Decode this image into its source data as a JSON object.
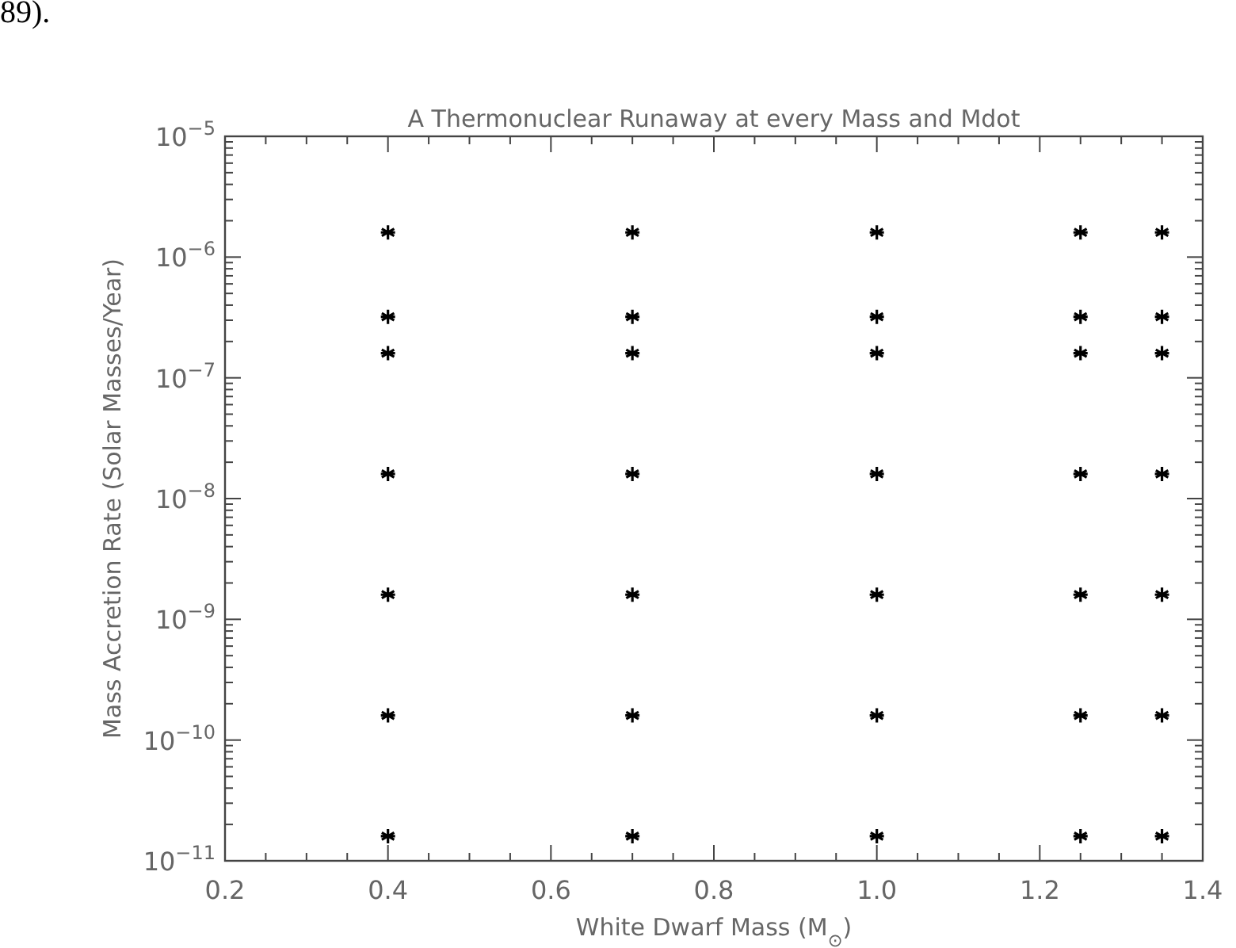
{
  "chart_data": {
    "type": "scatter",
    "title": "A Thermonuclear Runaway at every Mass and Mdot",
    "xlabel": "White Dwarf Mass (M$_{⊙}$)",
    "ylabel": "Mass Accretion Rate (Solar Masses/Year)",
    "annotations": [
      "89)."
    ],
    "log": "y",
    "marker": "cross",
    "grid": false,
    "xlim": [
      0.2,
      1.4
    ],
    "xticks": [
      0.2,
      {
        "value": 0.25,
        "label": null
      },
      {
        "value": 0.3,
        "label": null
      },
      {
        "value": 0.35,
        "label": null
      },
      {
        "value": 0.4,
        "label": "0.4"
      },
      {
        "value": 0.45,
        "label": null
      },
      {
        "value": 0.5,
        "label": null
      },
      {
        "value": 0.55,
        "label": null
      },
      {
        "value": 0.6,
        "label": "0.6"
      },
      {
        "value": 0.65,
        "label": null
      },
      {
        "value": 0.7,
        "label": null
      },
      {
        "value": 0.75,
        "label": null
      },
      {
        "value": 0.8,
        "label": "0.8"
      },
      {
        "value": 0.85,
        "label": null
      },
      {
        "value": 0.9,
        "label": null
      },
      {
        "value": 0.95,
        "label": null
      },
      {
        "value": 1.0,
        "label": "1.0"
      },
      {
        "value": 1.05,
        "label": null
      },
      {
        "value": 1.1,
        "label": null
      },
      {
        "value": 1.15,
        "label": null
      },
      {
        "value": 1.2,
        "label": "1.2"
      },
      {
        "value": 1.25,
        "label": null
      },
      {
        "value": 1.3,
        "label": null
      },
      {
        "value": 1.35,
        "label": null
      },
      {
        "value": 1.4,
        "label": "1.4"
      }
    ],
    "ylim": [
      1e-11,
      1e-05
    ],
    "yticks": [
      {
        "value": 1e-11,
        "label": "10$^{−11}$"
      },
      {
        "value": 1e-10,
        "label": "10$^{−10}$"
      },
      {
        "value": 1e-09,
        "label": "10$^{−9}$"
      },
      {
        "value": 1e-08,
        "label": "10$^{−8}$"
      },
      {
        "value": 1e-07,
        "label": "10$^{−7}$"
      },
      {
        "value": 1e-06,
        "label": "10$^{−6}$"
      },
      {
        "value": 1e-05,
        "label": "10$^{−5}$"
      }
    ],
    "series": [
      {
        "color": "#000000",
        "x": [
          0.4,
          0.4,
          0.4,
          0.4,
          0.4,
          0.4,
          0.4,
          0.7,
          0.7,
          0.7,
          0.7,
          0.7,
          0.7,
          0.7,
          1.0,
          1.0,
          1.0,
          1.0,
          1.0,
          1.0,
          1.0,
          1.25,
          1.25,
          1.25,
          1.25,
          1.25,
          1.25,
          1.25,
          1.35,
          1.35,
          1.35,
          1.35,
          1.35,
          1.35,
          1.35
        ],
        "values": [
          1.6e-06,
          3.2e-07,
          1.6e-07,
          1.6e-08,
          1.6e-09,
          1.6e-10,
          1.6e-11,
          1.6e-06,
          3.2e-07,
          1.6e-07,
          1.6e-08,
          1.6e-09,
          1.6e-10,
          1.6e-11,
          1.6e-06,
          3.2e-07,
          1.6e-07,
          1.6e-08,
          1.6e-09,
          1.6e-10,
          1.6e-11,
          1.6e-06,
          3.2e-07,
          1.6e-07,
          1.6e-08,
          1.6e-09,
          1.6e-10,
          1.6e-11,
          1.6e-06,
          3.2e-07,
          1.6e-07,
          1.6e-08,
          1.6e-09,
          1.6e-10,
          1.6e-11
        ]
      }
    ]
  }
}
